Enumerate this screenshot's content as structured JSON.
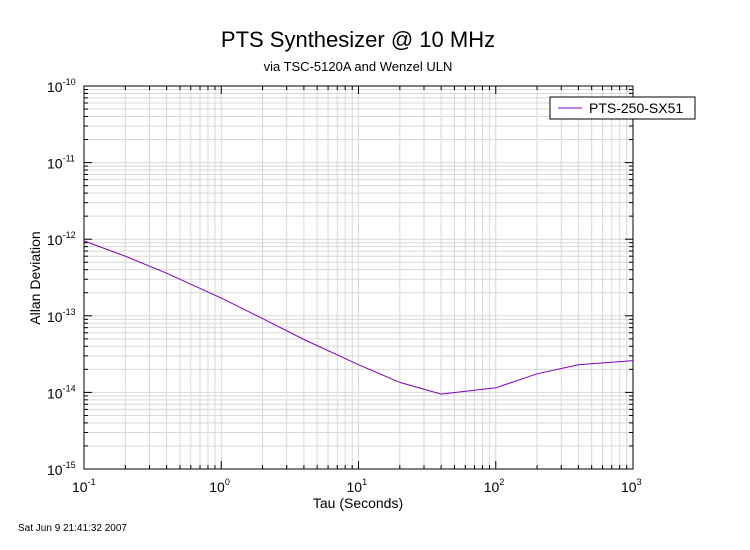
{
  "chart_data": {
    "type": "line",
    "title": "PTS Synthesizer @ 10 MHz",
    "subtitle": "via TSC-5120A and Wenzel ULN",
    "xlabel": "Tau (Seconds)",
    "ylabel": "Allan Deviation",
    "x_scale": "log",
    "y_scale": "log",
    "xlim": [
      0.1,
      1000
    ],
    "ylim": [
      1e-15,
      1e-10
    ],
    "grid": true,
    "legend_position": "top-right",
    "x_tick_labels": [
      {
        "base": "10",
        "exp": "-1",
        "value": 0.1
      },
      {
        "base": "10",
        "exp": "0",
        "value": 1
      },
      {
        "base": "10",
        "exp": "1",
        "value": 10
      },
      {
        "base": "10",
        "exp": "2",
        "value": 100
      },
      {
        "base": "10",
        "exp": "3",
        "value": 1000
      }
    ],
    "y_tick_labels": [
      {
        "base": "10",
        "exp": "-10",
        "value": 1e-10
      },
      {
        "base": "10",
        "exp": "-11",
        "value": 1e-11
      },
      {
        "base": "10",
        "exp": "-12",
        "value": 1e-12
      },
      {
        "base": "10",
        "exp": "-13",
        "value": 1e-13
      },
      {
        "base": "10",
        "exp": "-14",
        "value": 1e-14
      },
      {
        "base": "10",
        "exp": "-15",
        "value": 1e-15
      }
    ],
    "series": [
      {
        "name": "PTS-250-SX51",
        "color": "#8000c0",
        "x": [
          0.1,
          0.2,
          0.4,
          1,
          2,
          4,
          10,
          20,
          40,
          100,
          200,
          400,
          1000
        ],
        "y": [
          9.5e-13,
          6e-13,
          3.6e-13,
          1.7e-13,
          9.2e-14,
          4.9e-14,
          2.3e-14,
          1.35e-14,
          9.5e-15,
          1.15e-14,
          1.75e-14,
          2.3e-14,
          2.6e-14
        ]
      }
    ]
  },
  "footer": {
    "timestamp": "Sat Jun  9 21:41:32 2007"
  }
}
